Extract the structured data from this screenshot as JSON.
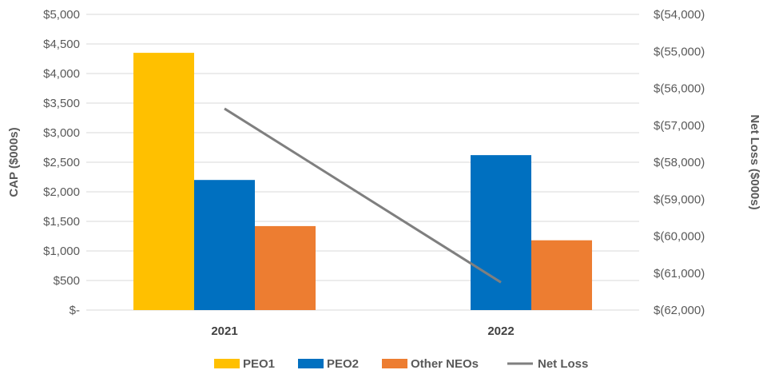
{
  "chart_data": {
    "type": "bar",
    "categories": [
      "2021",
      "2022"
    ],
    "series": [
      {
        "name": "PEO1",
        "values": [
          4350,
          0
        ],
        "color": "#FFC000",
        "axis": "left"
      },
      {
        "name": "PEO2",
        "values": [
          2200,
          2620
        ],
        "color": "#0070C0",
        "axis": "left"
      },
      {
        "name": "Other NEOs",
        "values": [
          1420,
          1180
        ],
        "color": "#ED7D31",
        "axis": "left"
      }
    ],
    "line_series": [
      {
        "name": "Net Loss",
        "type": "line",
        "values": [
          -56550,
          -61250
        ],
        "color": "#7F7F7F",
        "axis": "right"
      }
    ],
    "ylabel": "CAP ($000s)",
    "ylabel_right": "Net Loss ($000s)",
    "ylim": [
      0,
      5000
    ],
    "ylim_right": [
      -62000,
      -54000
    ],
    "yticks": [
      0,
      500,
      1000,
      1500,
      2000,
      2500,
      3000,
      3500,
      4000,
      4500,
      5000
    ],
    "ytick_labels": [
      "$-",
      "$500",
      "$1,000",
      "$1,500",
      "$2,000",
      "$2,500",
      "$3,000",
      "$3,500",
      "$4,000",
      "$4,500",
      "$5,000"
    ],
    "yticks_right": [
      -54000,
      -55000,
      -56000,
      -57000,
      -58000,
      -59000,
      -60000,
      -61000,
      -62000
    ],
    "ytick_labels_right": [
      "$(54,000)",
      "$(55,000)",
      "$(56,000)",
      "$(57,000)",
      "$(58,000)",
      "$(59,000)",
      "$(60,000)",
      "$(61,000)",
      "$(62,000)"
    ],
    "grid": true,
    "legend": {
      "position": "bottom",
      "entries": [
        "PEO1",
        "PEO2",
        "Other NEOs",
        "Net Loss"
      ]
    }
  }
}
